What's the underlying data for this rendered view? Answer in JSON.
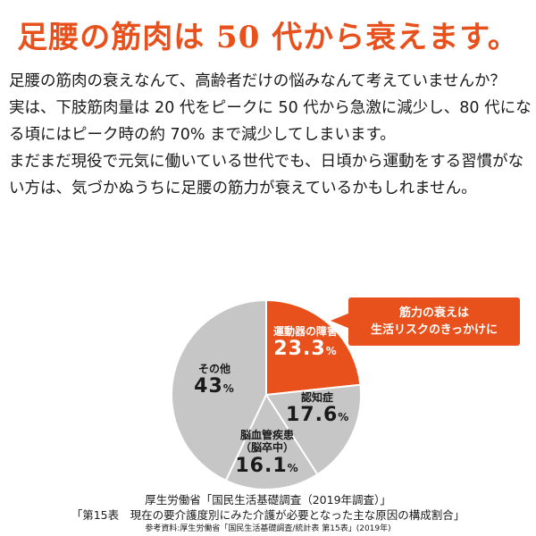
{
  "title": "足腰の筋肉は 50 代から衰えます。",
  "paragraphs": [
    "足腰の筋肉の衰えなんて、高齢者だけの悩みなんて考えていませんか？",
    "実は、下肢筋肉量は 20 代をピークに 50 代から急激に減少し、80 代になる頃にはピーク時の約 70% まで減少してしまいます。",
    "まだまだ現役で元気に働いている世代でも、日頃から運動をする習慣がない方は、気づかぬうちに足腰の筋力が衰えているかもしれません。"
  ],
  "callout": {
    "line1": "筋力の衰えは",
    "line2": "生活リスクのきっかけに"
  },
  "colors": {
    "accent": "#e8501c",
    "gray": "#c6c6c6",
    "separator": "#ffffff"
  },
  "chart_data": {
    "type": "pie",
    "start_angle_deg": 0,
    "direction": "clockwise",
    "slices": [
      {
        "label": "運動器の障害",
        "value": 23.3,
        "value_text": "23.3",
        "unit": "%",
        "color": "#e8501c"
      },
      {
        "label": "認知症",
        "value": 17.6,
        "value_text": "17.6",
        "unit": "%",
        "color": "#c6c6c6"
      },
      {
        "label": "脳血管疾患",
        "sublabel": "（脳卒中）",
        "value": 16.1,
        "value_text": "16.1",
        "unit": "%",
        "color": "#c6c6c6"
      },
      {
        "label": "その他",
        "value": 43,
        "value_text": "43",
        "unit": "%",
        "color": "#c6c6c6"
      }
    ]
  },
  "source": {
    "line1": "厚生労働省「国民生活基礎調査（2019年調査）」",
    "line2": "「第15表　現在の要介護度別にみた介護が必要となった主な原因の構成割合」",
    "ref": "参考資料:厚生労働省「国民生活基礎調査/統計表 第15表」(2019年)"
  }
}
